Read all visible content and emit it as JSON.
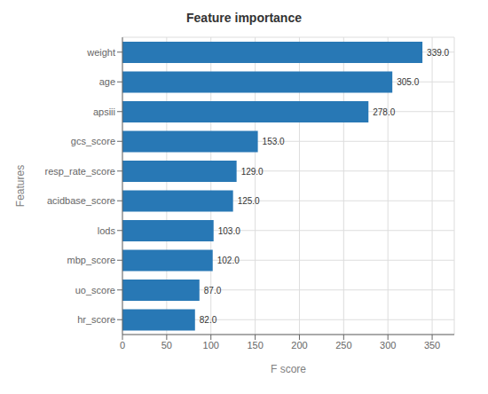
{
  "chart_data": {
    "type": "bar",
    "title": "Feature importance",
    "xlabel": "F score",
    "ylabel": "Features",
    "orientation": "horizontal",
    "categories": [
      "hr_score",
      "uo_score",
      "mbp_score",
      "lods",
      "acidbase_score",
      "resp_rate_score",
      "gcs_score",
      "apsiii",
      "age",
      "weight"
    ],
    "values": [
      82.0,
      87.0,
      102.0,
      103.0,
      125.0,
      129.0,
      153.0,
      278.0,
      305.0,
      339.0
    ],
    "value_labels": [
      "82.0",
      "87.0",
      "102.0",
      "103.0",
      "125.0",
      "129.0",
      "153.0",
      "278.0",
      "305.0",
      "339.0"
    ],
    "color": "#2878b5",
    "xlim": [
      0,
      375
    ],
    "xticks": [
      0,
      50,
      100,
      150,
      200,
      250,
      300,
      350
    ],
    "grid": true,
    "data_labels": true
  }
}
